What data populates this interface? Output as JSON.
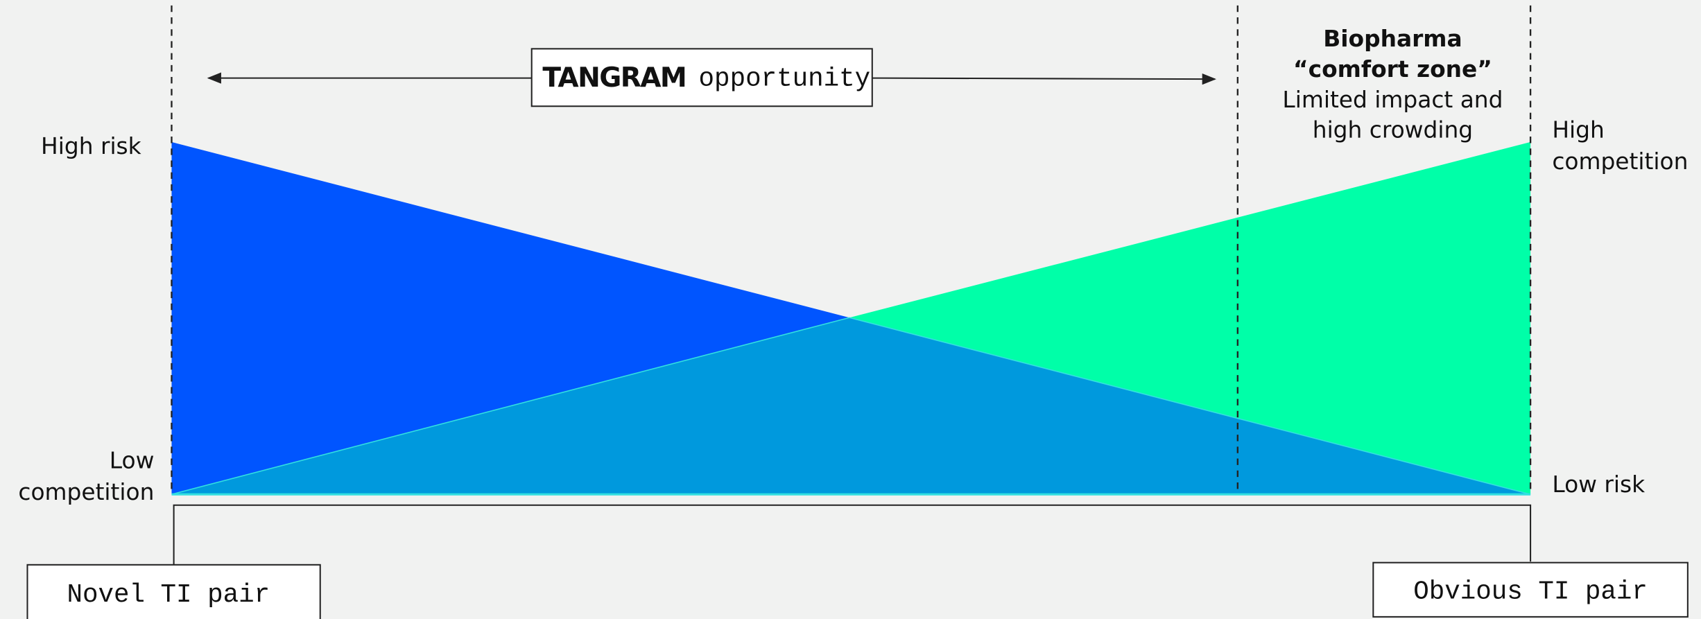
{
  "banner": {
    "logo": "TANGRAM",
    "text": "opportunity"
  },
  "left_axis": {
    "top": "High risk",
    "bottom": [
      "Low",
      "competition"
    ]
  },
  "right_axis": {
    "top": [
      "High",
      "competition"
    ],
    "bottom": "Low risk"
  },
  "zone": {
    "title": [
      "Biopharma",
      "“comfort zone”"
    ],
    "description": [
      "Limited impact and",
      "high crowding"
    ]
  },
  "ends": {
    "left": "Novel TI pair",
    "right": "Obvious TI pair"
  }
}
